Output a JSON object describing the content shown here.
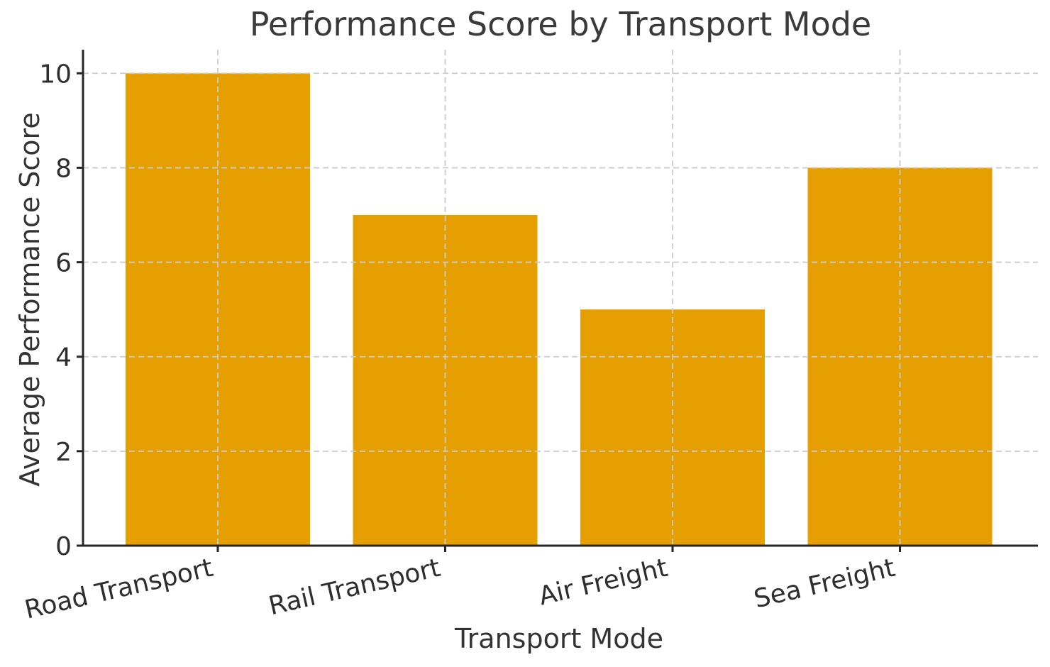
{
  "chart_data": {
    "type": "bar",
    "title": "Performance Score by Transport Mode",
    "xlabel": "Transport Mode",
    "ylabel": "Average Performance Score",
    "categories": [
      "Road Transport",
      "Rail Transport",
      "Air Freight",
      "Sea Freight"
    ],
    "values": [
      10,
      7,
      5,
      8
    ],
    "yticks": [
      0,
      2,
      4,
      6,
      8,
      10
    ],
    "ylim": [
      0,
      10.5
    ],
    "bar_color": "#E69F00",
    "grid": true,
    "grid_axis": "both",
    "grid_style": "dashed",
    "grid_color": "#cccccc",
    "grid_above_bars": true,
    "xtick_rotation_deg": 13,
    "legend": "none",
    "text_color": "#333333",
    "spine_color": "#262626",
    "background_color": "#ffffff",
    "visible_spines": [
      "left",
      "bottom"
    ]
  }
}
